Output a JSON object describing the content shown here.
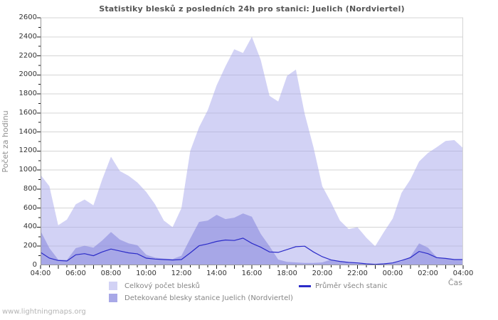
{
  "footer": {
    "url_text": "www.lightningmaps.org"
  },
  "chart_data": {
    "type": "area",
    "title": "Statistiky blesků z posledních 24h pro stanici: Juelich (Nordviertel)",
    "xlabel": "Čas",
    "ylabel": "Počet za hodinu",
    "ylim": [
      0,
      2600
    ],
    "y_tick_step": 200,
    "y_minor_tick_step": 100,
    "grid": true,
    "grid_color": "#d4d4d4",
    "axis_color": "#999999",
    "tick_color": "#1a1a1a",
    "legend_position": "bottom",
    "point_interval_minutes": 30,
    "x_label_every_n_points": 4,
    "x_tick_labels": [
      "04:00",
      "06:00",
      "08:00",
      "10:00",
      "12:00",
      "14:00",
      "16:00",
      "18:00",
      "20:00",
      "22:00",
      "00:00",
      "02:00",
      "04:00"
    ],
    "series": [
      {
        "name": "Celkový počet blesků",
        "kind": "area",
        "fill": "rgba(165,165,235,0.5)",
        "legend_color": "#d2d2f5",
        "values": [
          950,
          830,
          420,
          480,
          640,
          690,
          630,
          900,
          1140,
          990,
          940,
          870,
          770,
          640,
          470,
          400,
          600,
          1200,
          1450,
          1630,
          1890,
          2090,
          2270,
          2230,
          2400,
          2160,
          1780,
          1720,
          1990,
          2055,
          1590,
          1240,
          830,
          660,
          470,
          380,
          400,
          290,
          200,
          350,
          490,
          760,
          900,
          1090,
          1180,
          1240,
          1305,
          1315,
          1230
        ]
      },
      {
        "name": "Detekované blesky stanice Juelich (Nordviertel)",
        "kind": "area",
        "fill": "rgba(120,120,215,0.47)",
        "legend_color": "#a8a8e7",
        "values": [
          360,
          180,
          60,
          55,
          180,
          205,
          185,
          260,
          350,
          270,
          230,
          210,
          110,
          80,
          70,
          65,
          100,
          280,
          455,
          470,
          530,
          485,
          500,
          545,
          510,
          330,
          200,
          60,
          35,
          30,
          25,
          25,
          30,
          60,
          40,
          25,
          20,
          15,
          12,
          15,
          20,
          40,
          90,
          230,
          185,
          85,
          72,
          60,
          55
        ]
      },
      {
        "name": "Průměr všech stanic",
        "kind": "line",
        "color": "#2b2bc8",
        "values": [
          135,
          75,
          50,
          45,
          110,
          122,
          100,
          140,
          170,
          150,
          130,
          120,
          75,
          65,
          60,
          55,
          60,
          130,
          205,
          225,
          250,
          265,
          260,
          285,
          230,
          190,
          140,
          135,
          165,
          195,
          200,
          140,
          90,
          55,
          40,
          30,
          25,
          15,
          10,
          15,
          25,
          50,
          80,
          145,
          122,
          80,
          72,
          60,
          60
        ]
      }
    ]
  }
}
